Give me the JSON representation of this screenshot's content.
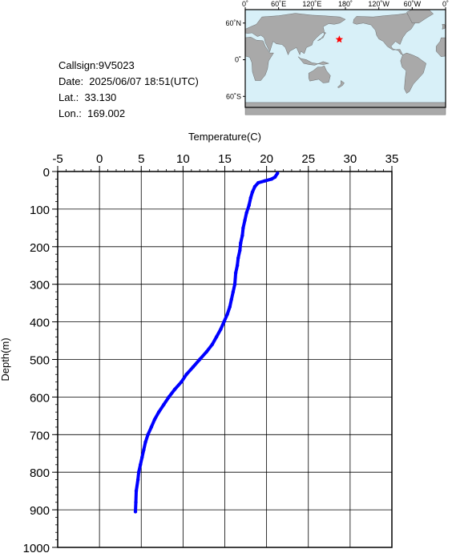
{
  "station": {
    "callsign": "Callsign:9V5023",
    "date": "Date:  2025/06/07 18:51(UTC)",
    "lat": "Lat.:  33.130",
    "lon": "Lon.:  169.002"
  },
  "map": {
    "lon_labels": [
      "0˚",
      "60˚E",
      "120˚E",
      "180˚",
      "120˚W",
      "60˚W",
      "0˚"
    ],
    "lat_labels": [
      "60˚N",
      "0˚",
      "60˚S"
    ],
    "ocean_color": "#d8f0f8",
    "land_color": "#a9a9a9",
    "marker_color": "#ff0000",
    "marker_lat": 33.13,
    "marker_lon": 169.002
  },
  "chart_data": {
    "type": "line",
    "title": "",
    "xlabel": "Temperature(C)",
    "ylabel": "Depth(m)",
    "x_ticks": [
      "-5",
      "0",
      "5",
      "10",
      "15",
      "20",
      "25",
      "30",
      "35"
    ],
    "y_ticks": [
      "0",
      "100",
      "200",
      "300",
      "400",
      "500",
      "600",
      "700",
      "800",
      "900",
      "1000"
    ],
    "xlim": [
      -5,
      35
    ],
    "ylim": [
      0,
      1000
    ],
    "y_inverted": true,
    "grid": true,
    "line_color": "#0000ff",
    "series": [
      {
        "x": [
          21.3,
          21.0,
          20.6,
          19.8,
          19.0,
          18.6,
          18.3,
          18.1,
          17.9,
          17.6,
          17.4,
          17.2,
          17.1,
          16.9,
          16.8,
          16.6,
          16.5,
          16.3,
          16.2,
          16.0,
          15.8,
          15.6,
          15.3,
          14.9,
          14.5,
          14.0,
          13.5,
          12.8,
          12.0,
          11.2,
          10.4,
          9.8,
          9.0,
          8.3,
          7.7,
          7.1,
          6.6,
          6.2,
          5.8,
          5.5,
          5.3,
          5.1,
          4.9,
          4.7,
          4.6,
          4.4,
          4.35,
          4.3
        ],
        "y": [
          5,
          15,
          20,
          25,
          30,
          40,
          55,
          70,
          90,
          110,
          130,
          150,
          170,
          190,
          210,
          230,
          250,
          270,
          300,
          320,
          340,
          360,
          380,
          400,
          420,
          440,
          460,
          480,
          500,
          520,
          540,
          560,
          580,
          600,
          620,
          640,
          660,
          680,
          700,
          720,
          740,
          760,
          780,
          800,
          820,
          850,
          880,
          905
        ]
      }
    ]
  }
}
